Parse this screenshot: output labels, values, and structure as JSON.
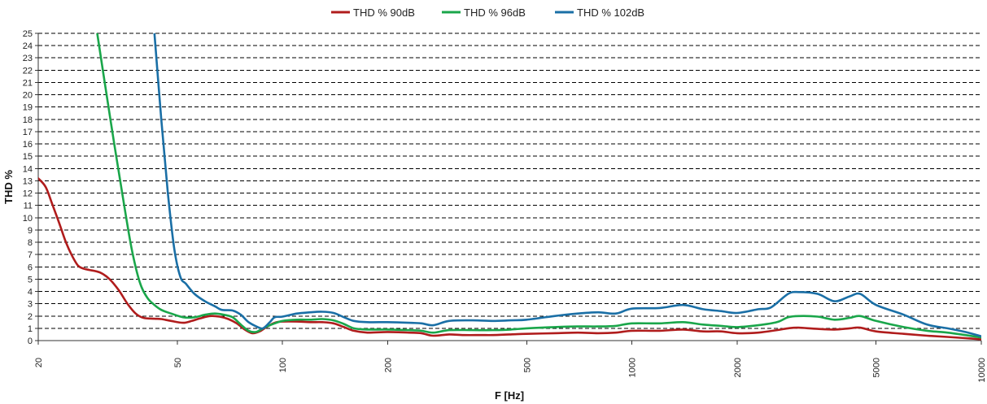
{
  "chart_data": {
    "type": "line",
    "xlabel": "F [Hz]",
    "ylabel": "THD %",
    "x_scale": "log",
    "xlim": [
      20,
      10000
    ],
    "ylim": [
      0,
      25
    ],
    "grid": "horizontal dashed",
    "legend_position": "top-center",
    "x_ticks": [
      20,
      50,
      100,
      200,
      500,
      1000,
      2000,
      5000,
      10000
    ],
    "y_ticks": [
      0,
      1,
      2,
      3,
      4,
      5,
      6,
      7,
      8,
      9,
      10,
      11,
      12,
      13,
      14,
      15,
      16,
      17,
      18,
      19,
      20,
      21,
      22,
      23,
      24,
      25
    ],
    "series": [
      {
        "name": "THD % 90dB",
        "color": "#b01c1c",
        "points": [
          [
            20,
            13.2
          ],
          [
            21,
            12.5
          ],
          [
            22,
            11
          ],
          [
            23,
            9.5
          ],
          [
            24,
            8
          ],
          [
            25,
            6.9
          ],
          [
            26,
            6.1
          ],
          [
            27,
            5.85
          ],
          [
            28,
            5.75
          ],
          [
            30,
            5.55
          ],
          [
            32,
            5.0
          ],
          [
            34,
            4.1
          ],
          [
            36,
            3.0
          ],
          [
            38,
            2.2
          ],
          [
            40,
            1.85
          ],
          [
            43,
            1.78
          ],
          [
            45,
            1.75
          ],
          [
            48,
            1.6
          ],
          [
            52,
            1.45
          ],
          [
            55,
            1.6
          ],
          [
            58,
            1.8
          ],
          [
            62,
            2.0
          ],
          [
            66,
            1.95
          ],
          [
            70,
            1.75
          ],
          [
            74,
            1.4
          ],
          [
            78,
            0.9
          ],
          [
            82,
            0.6
          ],
          [
            86,
            0.75
          ],
          [
            90,
            1.1
          ],
          [
            95,
            1.45
          ],
          [
            100,
            1.55
          ],
          [
            110,
            1.55
          ],
          [
            120,
            1.5
          ],
          [
            130,
            1.5
          ],
          [
            140,
            1.4
          ],
          [
            150,
            1.1
          ],
          [
            160,
            0.8
          ],
          [
            175,
            0.65
          ],
          [
            200,
            0.7
          ],
          [
            230,
            0.65
          ],
          [
            250,
            0.6
          ],
          [
            270,
            0.4
          ],
          [
            300,
            0.5
          ],
          [
            330,
            0.45
          ],
          [
            370,
            0.45
          ],
          [
            400,
            0.45
          ],
          [
            450,
            0.5
          ],
          [
            500,
            0.55
          ],
          [
            600,
            0.6
          ],
          [
            700,
            0.65
          ],
          [
            800,
            0.6
          ],
          [
            900,
            0.65
          ],
          [
            1000,
            0.8
          ],
          [
            1200,
            0.8
          ],
          [
            1400,
            0.9
          ],
          [
            1600,
            0.75
          ],
          [
            1800,
            0.75
          ],
          [
            2000,
            0.6
          ],
          [
            2300,
            0.65
          ],
          [
            2600,
            0.85
          ],
          [
            2800,
            1.0
          ],
          [
            3000,
            1.05
          ],
          [
            3400,
            0.95
          ],
          [
            3800,
            0.9
          ],
          [
            4200,
            1.0
          ],
          [
            4500,
            1.05
          ],
          [
            5000,
            0.75
          ],
          [
            6000,
            0.55
          ],
          [
            7000,
            0.4
          ],
          [
            8000,
            0.3
          ],
          [
            9000,
            0.2
          ],
          [
            10000,
            0.1
          ]
        ]
      },
      {
        "name": "THD % 96dB",
        "color": "#1aa64a",
        "points": [
          [
            29.5,
            25
          ],
          [
            31,
            21
          ],
          [
            33,
            16
          ],
          [
            35,
            11.5
          ],
          [
            37,
            7.5
          ],
          [
            39,
            4.8
          ],
          [
            41,
            3.5
          ],
          [
            43,
            2.9
          ],
          [
            45,
            2.5
          ],
          [
            48,
            2.2
          ],
          [
            52,
            1.9
          ],
          [
            56,
            1.9
          ],
          [
            60,
            2.1
          ],
          [
            64,
            2.2
          ],
          [
            68,
            2.1
          ],
          [
            72,
            1.9
          ],
          [
            76,
            1.3
          ],
          [
            80,
            0.8
          ],
          [
            84,
            0.7
          ],
          [
            88,
            1.0
          ],
          [
            93,
            1.3
          ],
          [
            100,
            1.6
          ],
          [
            110,
            1.7
          ],
          [
            120,
            1.7
          ],
          [
            130,
            1.75
          ],
          [
            140,
            1.65
          ],
          [
            150,
            1.35
          ],
          [
            160,
            1.0
          ],
          [
            175,
            0.9
          ],
          [
            200,
            0.9
          ],
          [
            230,
            0.85
          ],
          [
            250,
            0.8
          ],
          [
            270,
            0.65
          ],
          [
            300,
            0.85
          ],
          [
            350,
            0.85
          ],
          [
            400,
            0.85
          ],
          [
            450,
            0.9
          ],
          [
            500,
            1.0
          ],
          [
            600,
            1.1
          ],
          [
            700,
            1.15
          ],
          [
            800,
            1.15
          ],
          [
            900,
            1.2
          ],
          [
            1000,
            1.4
          ],
          [
            1200,
            1.4
          ],
          [
            1400,
            1.5
          ],
          [
            1600,
            1.3
          ],
          [
            1800,
            1.2
          ],
          [
            2000,
            1.1
          ],
          [
            2300,
            1.25
          ],
          [
            2600,
            1.5
          ],
          [
            2800,
            1.9
          ],
          [
            3000,
            2.0
          ],
          [
            3400,
            1.95
          ],
          [
            3800,
            1.7
          ],
          [
            4200,
            1.85
          ],
          [
            4500,
            2.0
          ],
          [
            5000,
            1.6
          ],
          [
            6000,
            1.1
          ],
          [
            7000,
            0.8
          ],
          [
            8000,
            0.65
          ],
          [
            9000,
            0.45
          ],
          [
            10000,
            0.25
          ]
        ]
      },
      {
        "name": "THD % 102dB",
        "color": "#1a6fa6",
        "points": [
          [
            43,
            25
          ],
          [
            45,
            18
          ],
          [
            47,
            12
          ],
          [
            49,
            7.5
          ],
          [
            51,
            5.2
          ],
          [
            53,
            4.6
          ],
          [
            56,
            3.8
          ],
          [
            60,
            3.2
          ],
          [
            64,
            2.8
          ],
          [
            67,
            2.5
          ],
          [
            72,
            2.45
          ],
          [
            76,
            2.1
          ],
          [
            80,
            1.5
          ],
          [
            85,
            1.1
          ],
          [
            88,
            1.0
          ],
          [
            92,
            1.5
          ],
          [
            95,
            1.9
          ],
          [
            100,
            1.95
          ],
          [
            110,
            2.2
          ],
          [
            120,
            2.3
          ],
          [
            130,
            2.35
          ],
          [
            140,
            2.25
          ],
          [
            150,
            1.9
          ],
          [
            160,
            1.6
          ],
          [
            175,
            1.5
          ],
          [
            200,
            1.5
          ],
          [
            230,
            1.45
          ],
          [
            250,
            1.4
          ],
          [
            270,
            1.25
          ],
          [
            300,
            1.6
          ],
          [
            350,
            1.65
          ],
          [
            400,
            1.6
          ],
          [
            450,
            1.65
          ],
          [
            500,
            1.7
          ],
          [
            600,
            2.0
          ],
          [
            700,
            2.2
          ],
          [
            800,
            2.3
          ],
          [
            900,
            2.2
          ],
          [
            1000,
            2.6
          ],
          [
            1200,
            2.65
          ],
          [
            1400,
            2.9
          ],
          [
            1600,
            2.55
          ],
          [
            1800,
            2.4
          ],
          [
            2000,
            2.25
          ],
          [
            2300,
            2.55
          ],
          [
            2500,
            2.7
          ],
          [
            2800,
            3.8
          ],
          [
            3000,
            3.95
          ],
          [
            3400,
            3.8
          ],
          [
            3800,
            3.2
          ],
          [
            4200,
            3.6
          ],
          [
            4500,
            3.8
          ],
          [
            5000,
            2.9
          ],
          [
            6000,
            2.1
          ],
          [
            7000,
            1.3
          ],
          [
            8000,
            1.0
          ],
          [
            9000,
            0.7
          ],
          [
            10000,
            0.35
          ]
        ]
      }
    ]
  }
}
